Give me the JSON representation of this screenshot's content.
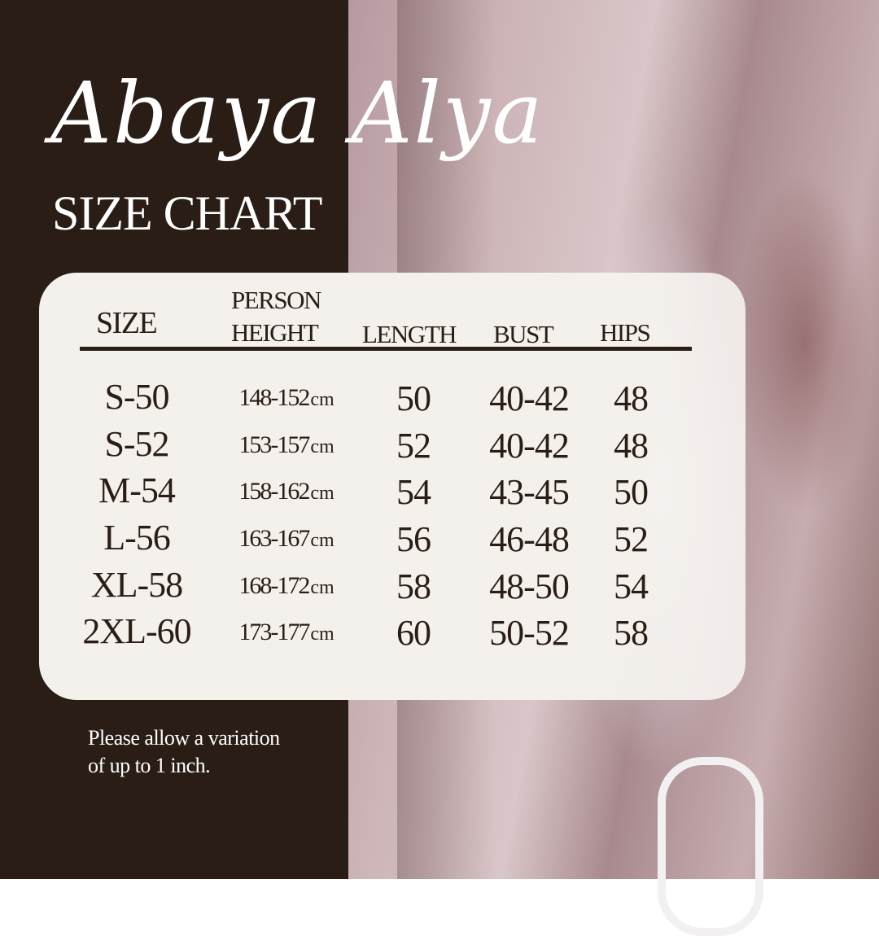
{
  "brand": {
    "title": "Abaya Alya",
    "subtitle": "SIZE CHART"
  },
  "colors": {
    "background_dark": "#2a1d16",
    "card": "#f4f1ec",
    "text": "#2a1d16",
    "title_text": "#ffffff"
  },
  "table": {
    "headers": {
      "size": "SIZE",
      "height_line1": "PERSON",
      "height_line2": "HEIGHT",
      "length": "LENGTH",
      "bust": "BUST",
      "hips": "HIPS"
    },
    "rows": [
      {
        "size": "S-50",
        "height": "148-152",
        "unit": "cm",
        "length": "50",
        "bust": "40-42",
        "hips": "48"
      },
      {
        "size": "S-52",
        "height": "153-157",
        "unit": "cm",
        "length": "52",
        "bust": "40-42",
        "hips": "48"
      },
      {
        "size": "M-54",
        "height": "158-162",
        "unit": "cm",
        "length": "54",
        "bust": "43-45",
        "hips": "50"
      },
      {
        "size": "L-56",
        "height": "163-167",
        "unit": "cm",
        "length": "56",
        "bust": "46-48",
        "hips": "52"
      },
      {
        "size": "XL-58",
        "height": "168-172",
        "unit": "cm",
        "length": "58",
        "bust": "48-50",
        "hips": "54"
      },
      {
        "size": "2XL-60",
        "height": "173-177",
        "unit": "cm",
        "length": "60",
        "bust": "50-52",
        "hips": "58"
      }
    ]
  },
  "footer": {
    "note_line1": "Please allow a variation",
    "note_line2": "of up to 1 inch."
  }
}
